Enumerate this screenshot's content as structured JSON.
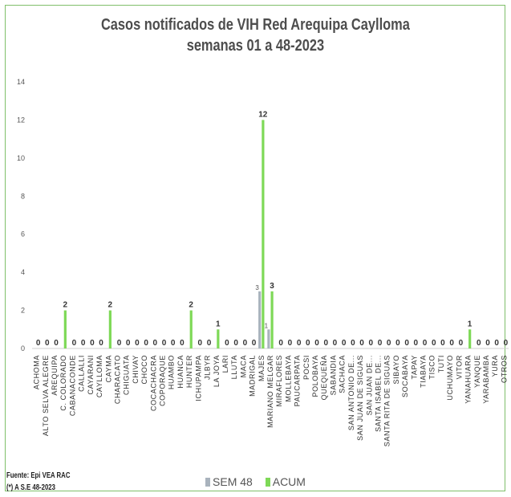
{
  "chart_data": {
    "type": "bar",
    "title": "Casos notificados de VIH Red Arequipa Caylloma",
    "subtitle": "semanas 01 a 48-2023",
    "xlabel": "",
    "ylabel": "",
    "ylim": [
      0,
      14
    ],
    "yticks": [
      "0",
      "2",
      "4",
      "6",
      "8",
      "10",
      "12",
      "14"
    ],
    "grid": false,
    "legend_position": "bottom",
    "categories": [
      "ACHOMA",
      "ALTO SELVA ALEGRE",
      "AREQUIPA",
      "C. COLORADO",
      "CABANACONDE",
      "CALLALLI",
      "CAYARANI",
      "CAYLLOMA",
      "CAYMA",
      "CHARACATO",
      "CHIGUATA",
      "CHIVAY",
      "CHOCO",
      "COCACHACRA",
      "COPORAQUE",
      "HUAMBO",
      "HUANCA",
      "HUNTER",
      "ICHUPAMPA",
      "JLBYR",
      "LA JOYA",
      "LARI",
      "LLUTA",
      "MACA",
      "MADRIGAL",
      "MAJES",
      "MARIANO MELGAR",
      "MIRAFLORES",
      "MOLLEBAYA",
      "PAUCARPATA",
      "POCSI",
      "POLOBAYA",
      "QUEQUEÑA",
      "SABANDIA",
      "SACHACA",
      "SAN ANTONIO DE...",
      "SAN JUAN DE SIGUAS",
      "SAN JUAN DE...",
      "SANTA ISABEL DE...",
      "SANTA RITA DE SIGUAS",
      "SIBAYO",
      "SOCABAYA",
      "TAPAY",
      "TIABAYA",
      "TISCO",
      "TUTI",
      "UCHUMAYO",
      "VITOR",
      "YANAHUARA",
      "YANQUE",
      "YARABAMBA",
      "YURA",
      "OTROS"
    ],
    "series": [
      {
        "name": "SEM 48",
        "color": "#a9b3bd",
        "values": [
          0,
          0,
          0,
          0,
          0,
          0,
          0,
          0,
          0,
          0,
          0,
          0,
          0,
          0,
          0,
          0,
          0,
          0,
          0,
          0,
          0,
          0,
          0,
          0,
          0,
          3,
          1,
          0,
          0,
          0,
          0,
          0,
          0,
          0,
          0,
          0,
          0,
          0,
          0,
          0,
          0,
          0,
          0,
          0,
          0,
          0,
          0,
          0,
          0,
          0,
          0,
          0,
          0
        ],
        "labels": [
          "",
          "",
          "",
          "",
          "",
          "",
          "",
          "",
          "",
          "",
          "",
          "",
          "",
          "",
          "",
          "",
          "",
          "",
          "",
          "",
          "",
          "",
          "",
          "",
          "",
          "3",
          "1",
          "",
          "",
          "",
          "",
          "",
          "",
          "",
          "",
          "",
          "",
          "",
          "",
          "",
          "",
          "",
          "",
          "",
          "",
          "",
          "",
          "",
          "",
          "",
          "",
          "",
          ""
        ]
      },
      {
        "name": "ACUM",
        "color": "#7ed957",
        "values": [
          0,
          0,
          0,
          2,
          0,
          0,
          0,
          0,
          2,
          0,
          0,
          0,
          0,
          0,
          0,
          0,
          0,
          2,
          0,
          0,
          1,
          0,
          0,
          0,
          0,
          12,
          3,
          0,
          0,
          0,
          0,
          0,
          0,
          0,
          0,
          0,
          0,
          0,
          0,
          0,
          0,
          0,
          0,
          0,
          0,
          0,
          0,
          0,
          1,
          0,
          0,
          0,
          0
        ],
        "labels": [
          "0",
          "0",
          "0",
          "2",
          "0",
          "0",
          "0",
          "0",
          "2",
          "0",
          "0",
          "0",
          "0",
          "0",
          "0",
          "0",
          "0",
          "2",
          "0",
          "0",
          "1",
          "0",
          "0",
          "0",
          "0",
          "12",
          "3",
          "0",
          "0",
          "0",
          "0",
          "0",
          "0",
          "0",
          "0",
          "0",
          "0",
          "0",
          "0",
          "0",
          "0",
          "0",
          "0",
          "0",
          "0",
          "0",
          "0",
          "0",
          "1",
          "0",
          "0",
          "0",
          "0"
        ]
      }
    ]
  },
  "footer": {
    "source": "Fuente: Epi VEA RAC",
    "note": "(*) A S.E 48-2023"
  }
}
